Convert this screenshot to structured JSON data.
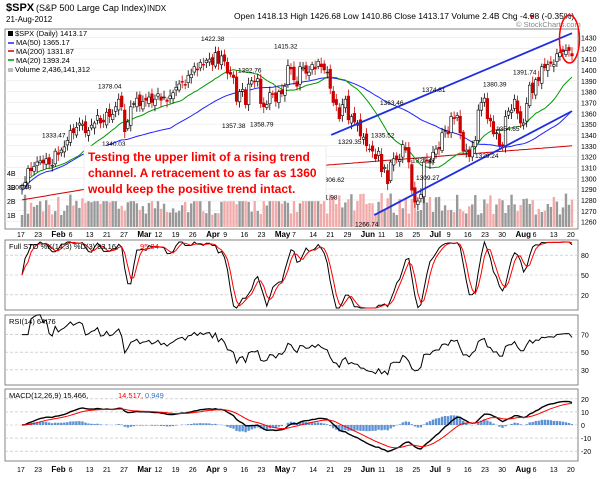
{
  "header": {
    "symbol": "$SPX",
    "name": "(S&P 500 Large Cap Index)",
    "exchange": "INDX",
    "date": "21-Aug-2012",
    "ohlc": "Open 1418.13  High 1426.68  Low 1410.86  Close 1413.17  Volume 2.4B  Chg -4.98 (-0.35%)",
    "chg_tail": "Chg -4.98 (-0.35%)",
    "chg_marker": "▼",
    "watermark": "© StockCharts.com"
  },
  "legend": {
    "daily": "$SPX (Daily) 1413.17",
    "ma50": "MA(50) 1365.17",
    "ma200": "MA(200) 1331.87",
    "ma20": "MA(20) 1393.24",
    "volume": "Volume 2,436,141,312"
  },
  "colors": {
    "up": "#000000",
    "down": "#cc0000",
    "ma50": "#2020ff",
    "ma200": "#cc0000",
    "ma20": "#009900",
    "channel": "#1e2ee0",
    "annotation": "#ff0000",
    "sto_k": "#000000",
    "sto_d": "#ff0000",
    "rsi": "#000000",
    "macd": "#000000",
    "signal": "#ff0000",
    "hist": "#3377cc",
    "volume": "#bbbbbb",
    "volume_up": "#999999",
    "volume_down": "#f2aaaa"
  },
  "annotation_text": "Testing the upper limit of a rising trend channel.   A retracement to as far as 1360 would keep the positive trend intact.",
  "x_axis_labels": [
    "17",
    "23",
    "Feb",
    "6",
    "13",
    "21",
    "27",
    "Mar",
    "12",
    "19",
    "26",
    "Apr",
    "9",
    "16",
    "23",
    "May",
    "7",
    "14",
    "21",
    "29",
    "Jun",
    "11",
    "18",
    "25",
    "Jul",
    "9",
    "16",
    "23",
    "30",
    "Aug",
    "6",
    "13",
    "20"
  ],
  "indicators": {
    "sto": {
      "label": "Full STO %K(14,3) %D(3) 93.16,",
      "d_value": "95.84",
      "ticks": [
        "80",
        "50",
        "20"
      ]
    },
    "rsi": {
      "label": "RSI(14) 64.76",
      "ticks": [
        "70",
        "50",
        "30"
      ]
    },
    "macd": {
      "label": "MACD(12,26,9) 15.466,",
      "signal_value": "14.517,",
      "hist_value": "0.949",
      "ticks": [
        "20",
        "10",
        "0",
        "-10",
        "-20"
      ]
    }
  },
  "chart_data": {
    "type": "candlestick",
    "price_ticks": [
      "1430",
      "1420",
      "1410",
      "1400",
      "1390",
      "1380",
      "1370",
      "1360",
      "1350",
      "1340",
      "1330",
      "1320",
      "1310",
      "1300",
      "1290",
      "1280",
      "1270",
      "1260"
    ],
    "volume_ticks": [
      "4B",
      "3B",
      "2B",
      "1B"
    ],
    "x_start": "2012-01-17",
    "x_end": "2012-08-21",
    "ylim": [
      1255,
      1436
    ],
    "closes": [
      1293,
      1296,
      1309,
      1307,
      1311,
      1315,
      1316,
      1314,
      1318,
      1313,
      1312,
      1325,
      1322,
      1326,
      1329,
      1335,
      1344,
      1342,
      1347,
      1351,
      1350,
      1342,
      1344,
      1349,
      1351,
      1358,
      1351,
      1352,
      1361,
      1357,
      1359,
      1366,
      1373,
      1366,
      1343,
      1352,
      1366,
      1369,
      1374,
      1367,
      1371,
      1372,
      1375,
      1370,
      1373,
      1378,
      1372,
      1375,
      1371,
      1376,
      1379,
      1384,
      1387,
      1389,
      1386,
      1395,
      1396,
      1403,
      1400,
      1407,
      1405,
      1409,
      1410,
      1405,
      1416,
      1406,
      1413,
      1408,
      1397,
      1396,
      1393,
      1371,
      1380,
      1382,
      1368,
      1387,
      1390,
      1389,
      1392,
      1369,
      1366,
      1368,
      1379,
      1378,
      1371,
      1380,
      1378,
      1385,
      1404,
      1401,
      1391,
      1385,
      1403,
      1402,
      1397,
      1398,
      1405,
      1401,
      1408,
      1403,
      1400,
      1398,
      1383,
      1370,
      1368,
      1355,
      1368,
      1373,
      1354,
      1357,
      1352,
      1351,
      1339,
      1338,
      1330,
      1327,
      1325,
      1318,
      1325,
      1306,
      1310,
      1295,
      1315,
      1318,
      1318,
      1317,
      1331,
      1326,
      1315,
      1289,
      1278,
      1279,
      1285,
      1315,
      1316,
      1315,
      1324,
      1327,
      1327,
      1342,
      1344,
      1341,
      1357,
      1355,
      1358,
      1342,
      1325,
      1326,
      1320,
      1329,
      1335,
      1363,
      1370,
      1374,
      1355,
      1353,
      1341,
      1342,
      1330,
      1330,
      1357,
      1362,
      1363,
      1373,
      1360,
      1351,
      1351,
      1369,
      1386,
      1379,
      1391,
      1390,
      1403,
      1402,
      1405,
      1406,
      1405,
      1415,
      1416,
      1417,
      1418,
      1418,
      1413
    ],
    "annotations": {
      "highs": [
        "1333.47",
        "1378.04",
        "1422.38",
        "1415.32",
        "1392.76",
        "1363.46",
        "1374.81",
        "1380.39",
        "1391.74"
      ],
      "lows": [
        "1300.49",
        "1340.03",
        "1357.38",
        "1358.79",
        "1291.98",
        "1266.74",
        "1306.62",
        "1309.27",
        "1329.35",
        "1325.41",
        "1329.24",
        "1354.65",
        "1335.52"
      ],
      "inline_value": "1329.35"
    },
    "channel": {
      "upper": [
        [
          "2012-05-18",
          1340
        ],
        [
          "2012-08-21",
          1434
        ]
      ],
      "lower": [
        [
          "2012-06-04",
          1266
        ],
        [
          "2012-08-21",
          1362
        ]
      ]
    },
    "highlight_circle_at": "2012-08-20"
  }
}
